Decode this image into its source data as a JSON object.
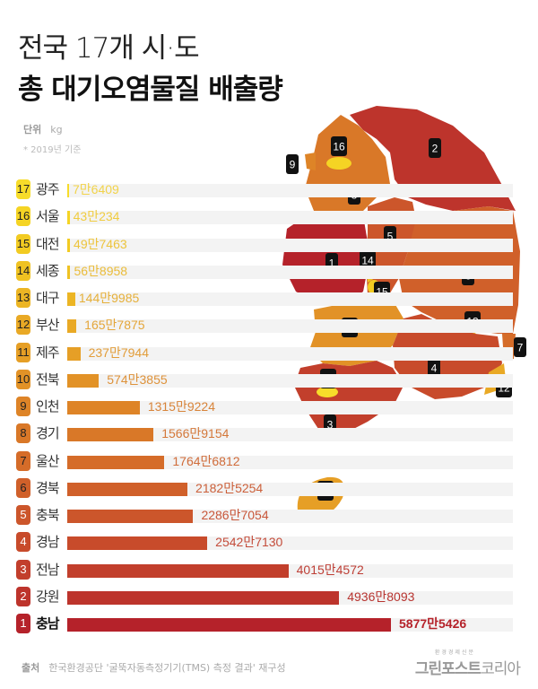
{
  "header": {
    "title_line1": "전국 17개 시·도",
    "title_line2": "총 대기오염물질 배출량",
    "unit_label": "단위",
    "unit_value": "kg",
    "note": "* 2019년 기준"
  },
  "chart_data": {
    "type": "bar",
    "orientation": "horizontal",
    "title": "전국 17개 시·도 총 대기오염물질 배출량",
    "unit": "kg",
    "categories": [
      "광주",
      "서울",
      "대전",
      "세종",
      "대구",
      "부산",
      "제주",
      "전북",
      "인천",
      "경기",
      "울산",
      "경북",
      "충북",
      "경남",
      "전남",
      "강원",
      "충남"
    ],
    "ranks": [
      17,
      16,
      15,
      14,
      13,
      12,
      11,
      10,
      9,
      8,
      7,
      6,
      5,
      4,
      3,
      2,
      1
    ],
    "values": [
      76409,
      430234,
      497463,
      568958,
      1449985,
      1657875,
      2377944,
      5743855,
      13159224,
      15669154,
      17646812,
      21825254,
      22867054,
      25427130,
      40154572,
      49368093,
      58775426
    ],
    "value_labels": [
      "7만6409",
      "43만234",
      "49만7463",
      "56만8958",
      "144만9985",
      "165만7875",
      "237만7944",
      "574만3855",
      "1315만9224",
      "1566만9154",
      "1764만6812",
      "2182만5254",
      "2286만7054",
      "2542만7130",
      "4015만4572",
      "4936만8093",
      "5877만5426"
    ],
    "colors": [
      "#f7dc2a",
      "#f5d424",
      "#f2cb22",
      "#efc222",
      "#ecb524",
      "#e9a925",
      "#e69f26",
      "#e29227",
      "#de8427",
      "#d97828",
      "#d56c29",
      "#d0602a",
      "#cc562b",
      "#c84b2b",
      "#c23f2c",
      "#bd342c",
      "#b5222a"
    ],
    "bar_value_colors": [
      "#f2d34a",
      "#f0cc40",
      "#edc43c",
      "#eabc3a",
      "#e6b03a",
      "#e4a63a",
      "#e29d3a",
      "#de923a",
      "#d8843a",
      "#d4783a",
      "#d06c3a",
      "#cc603a",
      "#c8573a",
      "#c44c3a",
      "#be3f36",
      "#b83430",
      "#b5222a"
    ]
  },
  "map": {
    "labels": [
      "1",
      "2",
      "3",
      "4",
      "5",
      "6",
      "7",
      "8",
      "9",
      "10",
      "11",
      "12",
      "13",
      "14",
      "15",
      "16",
      "17"
    ]
  },
  "footer": {
    "source_label": "출처",
    "source_text": "한국환경공단 '굴뚝자동측정기기(TMS) 측정 결과' 재구성",
    "logo_small": "환경경제신문",
    "logo_main": "그린포스트",
    "logo_sub": "코리아"
  }
}
